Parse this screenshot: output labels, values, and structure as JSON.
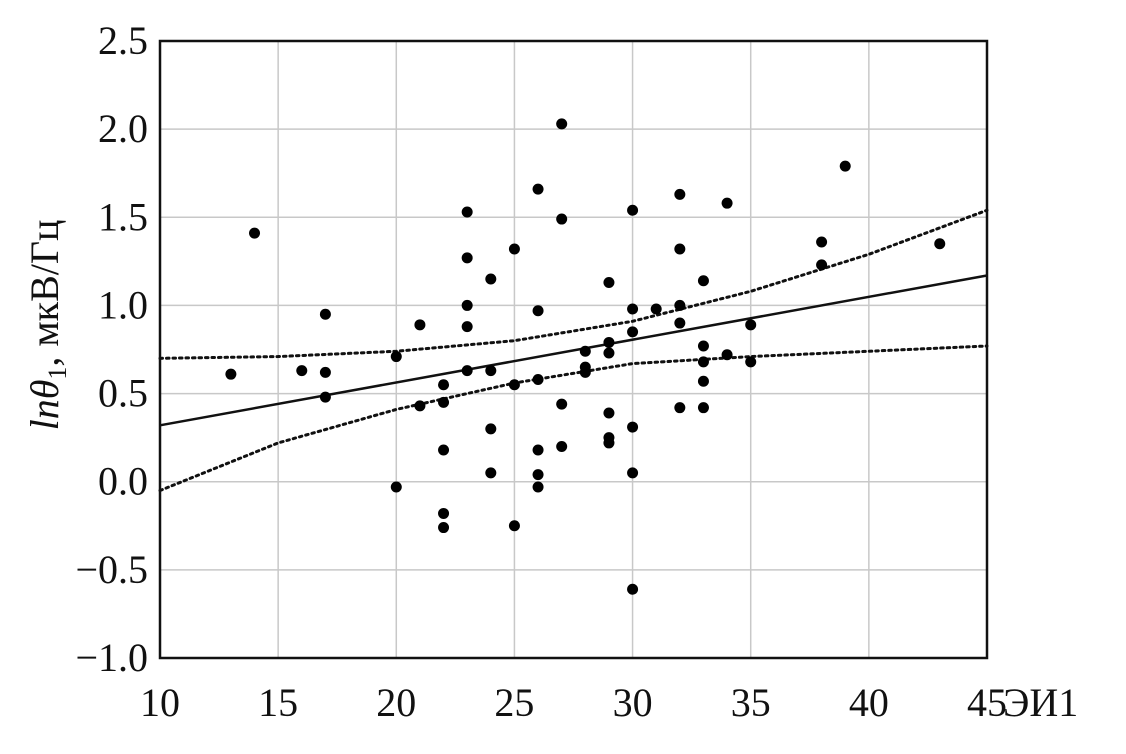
{
  "chart_data": {
    "type": "scatter",
    "xlabel": "ЭИ1",
    "ylabel": {
      "italic": "ln",
      "symbol": "θ",
      "subscript": "1",
      "unit": ", мкВ/Гц"
    },
    "xlim": [
      10,
      45
    ],
    "ylim": [
      -1.0,
      2.5
    ],
    "xticks": [
      10,
      15,
      20,
      25,
      30,
      35,
      40,
      45
    ],
    "yticks": [
      2.5,
      2.0,
      1.5,
      1.0,
      0.5,
      0.0,
      -0.5,
      -1.0
    ],
    "ytick_labels": [
      "2.5",
      "2.0",
      "1.5",
      "1.0",
      "0.5",
      "0.0",
      "−0.5",
      "−1.0"
    ],
    "grid": true,
    "points": [
      [
        13,
        0.61
      ],
      [
        14,
        1.41
      ],
      [
        16,
        0.63
      ],
      [
        17,
        0.95
      ],
      [
        17,
        0.62
      ],
      [
        17,
        0.48
      ],
      [
        20,
        0.71
      ],
      [
        20,
        -0.03
      ],
      [
        21,
        0.89
      ],
      [
        21,
        0.43
      ],
      [
        22,
        0.55
      ],
      [
        22,
        0.45
      ],
      [
        22,
        0.18
      ],
      [
        22,
        -0.18
      ],
      [
        22,
        -0.26
      ],
      [
        23,
        1.53
      ],
      [
        23,
        1.27
      ],
      [
        23,
        1.0
      ],
      [
        23,
        0.88
      ],
      [
        23,
        0.63
      ],
      [
        24,
        1.15
      ],
      [
        24,
        0.63
      ],
      [
        24,
        0.3
      ],
      [
        24,
        0.05
      ],
      [
        25,
        1.32
      ],
      [
        25,
        0.55
      ],
      [
        25,
        -0.25
      ],
      [
        26,
        1.66
      ],
      [
        26,
        0.97
      ],
      [
        26,
        0.58
      ],
      [
        26,
        0.18
      ],
      [
        26,
        0.04
      ],
      [
        26,
        -0.03
      ],
      [
        27,
        2.03
      ],
      [
        27,
        1.49
      ],
      [
        27,
        0.44
      ],
      [
        27,
        0.2
      ],
      [
        28,
        0.74
      ],
      [
        28,
        0.65
      ],
      [
        28,
        0.62
      ],
      [
        29,
        1.13
      ],
      [
        29,
        0.79
      ],
      [
        29,
        0.73
      ],
      [
        29,
        0.39
      ],
      [
        29,
        0.25
      ],
      [
        29,
        0.22
      ],
      [
        30,
        1.54
      ],
      [
        30,
        0.98
      ],
      [
        30,
        0.85
      ],
      [
        30,
        0.31
      ],
      [
        30,
        0.05
      ],
      [
        30,
        -0.61
      ],
      [
        31,
        0.98
      ],
      [
        32,
        1.63
      ],
      [
        32,
        1.32
      ],
      [
        32,
        1.0
      ],
      [
        32,
        0.9
      ],
      [
        32,
        0.42
      ],
      [
        33,
        1.14
      ],
      [
        33,
        0.77
      ],
      [
        33,
        0.68
      ],
      [
        33,
        0.57
      ],
      [
        33,
        0.42
      ],
      [
        34,
        1.58
      ],
      [
        34,
        0.72
      ],
      [
        35,
        0.89
      ],
      [
        35,
        0.68
      ],
      [
        38,
        1.36
      ],
      [
        38,
        1.23
      ],
      [
        39,
        1.79
      ],
      [
        43,
        1.35
      ]
    ],
    "regression_line": {
      "style": "solid",
      "x": [
        10,
        45
      ],
      "y": [
        0.32,
        1.17
      ]
    },
    "confidence_bands": [
      {
        "name": "upper",
        "style": "dotted",
        "x": [
          10,
          15,
          20,
          25,
          30,
          35,
          40,
          45
        ],
        "y": [
          0.7,
          0.71,
          0.74,
          0.8,
          0.91,
          1.08,
          1.29,
          1.54
        ]
      },
      {
        "name": "lower",
        "style": "dotted",
        "x": [
          10,
          15,
          20,
          25,
          30,
          35,
          40,
          45
        ],
        "y": [
          -0.05,
          0.22,
          0.41,
          0.56,
          0.67,
          0.71,
          0.74,
          0.77
        ]
      }
    ]
  }
}
